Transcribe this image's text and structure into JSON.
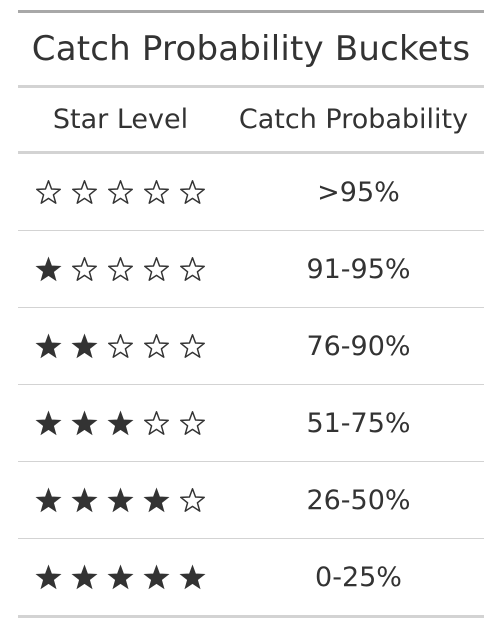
{
  "table": {
    "title": "Catch Probability Buckets",
    "headers": {
      "star_level": "Star Level",
      "catch_probability": "Catch Probability"
    },
    "rows": [
      {
        "filled_stars": 0,
        "total_stars": 5,
        "probability": ">95%"
      },
      {
        "filled_stars": 1,
        "total_stars": 5,
        "probability": "91-95%"
      },
      {
        "filled_stars": 2,
        "total_stars": 5,
        "probability": "76-90%"
      },
      {
        "filled_stars": 3,
        "total_stars": 5,
        "probability": "51-75%"
      },
      {
        "filled_stars": 4,
        "total_stars": 5,
        "probability": "26-50%"
      },
      {
        "filled_stars": 5,
        "total_stars": 5,
        "probability": "0-25%"
      }
    ]
  },
  "icons": {
    "filled": "star-filled-icon",
    "empty": "star-outline-icon"
  },
  "colors": {
    "text": "#333333",
    "rule_dark": "#a8a8a8",
    "rule_light": "#d3d3d3"
  }
}
